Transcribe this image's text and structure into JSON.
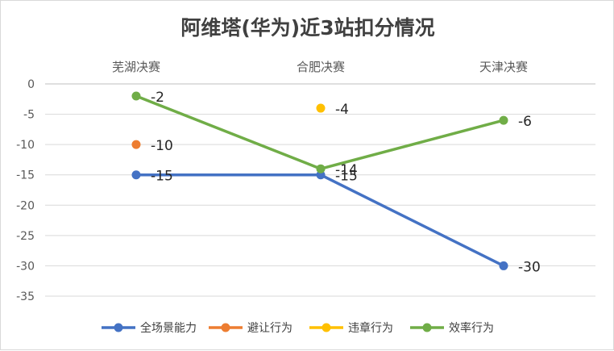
{
  "chart_data": {
    "type": "line",
    "title": "阿维塔(华为)近3站扣分情况",
    "xlabel": "",
    "ylabel": "",
    "categories": [
      "芜湖决赛",
      "合肥决赛",
      "天津决赛"
    ],
    "ylim": [
      -35,
      0
    ],
    "yticks": [
      0,
      -5,
      -10,
      -15,
      -20,
      -25,
      -30,
      -35
    ],
    "grid": true,
    "legend_position": "bottom",
    "x_axis_position": "top",
    "series": [
      {
        "name": "全场景能力",
        "color": "#4472C4",
        "values": [
          -15,
          -15,
          -30
        ],
        "labels": [
          "-15",
          "-15",
          "-30"
        ]
      },
      {
        "name": "避让行为",
        "color": "#ED7D31",
        "values": [
          -10,
          null,
          null
        ],
        "labels": [
          "-10",
          "",
          ""
        ]
      },
      {
        "name": "违章行为",
        "color": "#FFC000",
        "values": [
          null,
          -4,
          null
        ],
        "labels": [
          "",
          "-4",
          ""
        ]
      },
      {
        "name": "效率行为",
        "color": "#70AD47",
        "values": [
          -2,
          -14,
          -6
        ],
        "labels": [
          "-2",
          "-14",
          "-6"
        ]
      }
    ]
  }
}
